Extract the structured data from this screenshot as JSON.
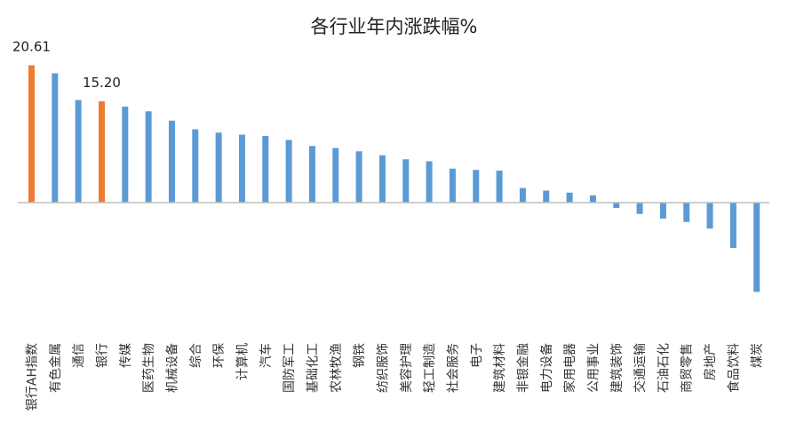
{
  "chart_data": {
    "type": "bar",
    "title": "各行业年内涨跌幅%",
    "xlabel": "",
    "ylabel": "",
    "ylim": [
      -14,
      22
    ],
    "grid": false,
    "legend": "none",
    "colors": {
      "default": "#5b9bd5",
      "highlight": "#ed7d31",
      "axis": "#bfbfbf"
    },
    "categories": [
      "银行AH指数",
      "有色金属",
      "通信",
      "银行",
      "传媒",
      "医药生物",
      "机械设备",
      "综合",
      "环保",
      "计算机",
      "汽车",
      "国防军工",
      "基础化工",
      "农林牧渔",
      "钢铁",
      "纺织服饰",
      "美容护理",
      "轻工制造",
      "社会服务",
      "电子",
      "建筑材料",
      "非银金融",
      "电力设备",
      "家用电器",
      "公用事业",
      "建筑装饰",
      "交通运输",
      "石油石化",
      "商贸零售",
      "房地产",
      "食品饮料",
      "煤炭"
    ],
    "values": [
      20.61,
      19.4,
      15.4,
      15.2,
      14.4,
      13.7,
      12.3,
      11.0,
      10.5,
      10.2,
      10.0,
      9.4,
      8.5,
      8.2,
      7.7,
      7.1,
      6.5,
      6.2,
      5.1,
      4.9,
      4.8,
      2.2,
      1.8,
      1.5,
      1.1,
      -0.8,
      -1.7,
      -2.4,
      -2.9,
      -3.9,
      -6.8,
      -13.4
    ],
    "highlight": [
      0,
      3
    ],
    "data_labels": [
      {
        "index": 0,
        "text": "20.61"
      },
      {
        "index": 3,
        "text": "15.20"
      }
    ]
  }
}
